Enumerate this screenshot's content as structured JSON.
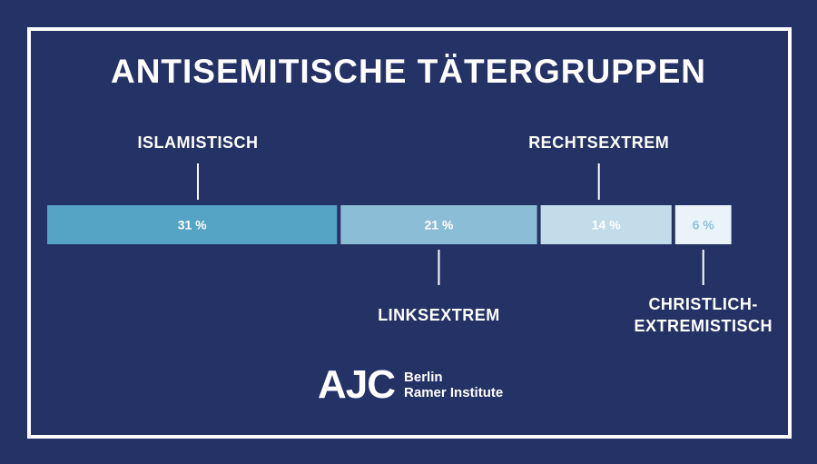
{
  "chart_data": {
    "type": "bar",
    "orientation": "horizontal-stacked",
    "title": "ANTISEMITISCHE TÄTERGRUPPEN",
    "unit": "%",
    "segments": [
      {
        "label": "ISLAMISTISCH",
        "label_lines": [
          "ISLAMISTISCH"
        ],
        "value": 31,
        "display": "31 %",
        "color": "#55a3c5",
        "text_color": "#ffffff",
        "label_position": "above"
      },
      {
        "label": "LINKSEXTREM",
        "label_lines": [
          "LINKSEXTREM"
        ],
        "value": 21,
        "display": "21 %",
        "color": "#8bbdd6",
        "text_color": "#ffffff",
        "label_position": "below"
      },
      {
        "label": "RECHTSEXTREM",
        "label_lines": [
          "RECHTSEXTREM"
        ],
        "value": 14,
        "display": "14 %",
        "color": "#c2dcea",
        "text_color": "#ffffff",
        "label_position": "above"
      },
      {
        "label": "CHRISTLICH-EXTREMISTISCH",
        "label_lines": [
          "CHRISTLICH-",
          "EXTREMISTISCH"
        ],
        "value": 6,
        "display": "6 %",
        "color": "#eaf3f8",
        "text_color": "#8fc3d9",
        "label_position": "below"
      }
    ]
  },
  "logo": {
    "mark": "AJC",
    "line1": "Berlin",
    "line2": "Ramer Institute"
  },
  "colors": {
    "background": "#243266",
    "frame": "#ffffff"
  }
}
